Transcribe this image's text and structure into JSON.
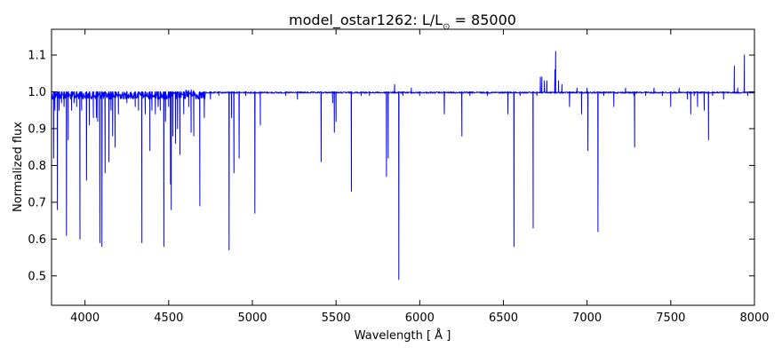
{
  "chart_data": {
    "type": "line",
    "title_main": "model_ostar1262: L/L",
    "title_sub": "⊙",
    "title_value": " = 85000",
    "xlabel": "Wavelength [ Å ]",
    "ylabel": "Normalized flux",
    "xlim": [
      3800,
      8000
    ],
    "ylim": [
      0.42,
      1.17
    ],
    "xticks": [
      4000,
      4500,
      5000,
      5500,
      6000,
      6500,
      7000,
      7500,
      8000
    ],
    "yticks": [
      0.5,
      0.6,
      0.7,
      0.8,
      0.9,
      1.0,
      1.1
    ],
    "ytick_labels": [
      "0.5",
      "0.6",
      "0.7",
      "0.8",
      "0.9",
      "1.0",
      "1.1"
    ],
    "grid": false,
    "series": [
      {
        "color": "#0000ff",
        "continuum": 1.0,
        "features": [
          [
            3813,
            0.82
          ],
          [
            3820,
            0.95
          ],
          [
            3835,
            0.68
          ],
          [
            3845,
            0.95
          ],
          [
            3860,
            0.97
          ],
          [
            3875,
            0.96
          ],
          [
            3889,
            0.61
          ],
          [
            3900,
            0.87
          ],
          [
            3920,
            0.95
          ],
          [
            3935,
            0.97
          ],
          [
            3950,
            0.96
          ],
          [
            3970,
            0.6
          ],
          [
            3980,
            0.95
          ],
          [
            4009,
            0.76
          ],
          [
            4026,
            0.91
          ],
          [
            4050,
            0.93
          ],
          [
            4068,
            0.93
          ],
          [
            4076,
            0.92
          ],
          [
            4089,
            0.59
          ],
          [
            4101,
            0.58
          ],
          [
            4120,
            0.78
          ],
          [
            4143,
            0.81
          ],
          [
            4155,
            0.95
          ],
          [
            4165,
            0.88
          ],
          [
            4180,
            0.85
          ],
          [
            4200,
            0.94
          ],
          [
            4250,
            0.97
          ],
          [
            4300,
            0.96
          ],
          [
            4320,
            0.95
          ],
          [
            4340,
            0.59
          ],
          [
            4360,
            0.94
          ],
          [
            4388,
            0.84
          ],
          [
            4400,
            0.95
          ],
          [
            4420,
            0.94
          ],
          [
            4437,
            0.96
          ],
          [
            4450,
            0.95
          ],
          [
            4471,
            0.58
          ],
          [
            4481,
            0.92
          ],
          [
            4500,
            0.96
          ],
          [
            4511,
            0.75
          ],
          [
            4515,
            0.68
          ],
          [
            4525,
            0.88
          ],
          [
            4541,
            0.86
          ],
          [
            4553,
            0.9
          ],
          [
            4567,
            0.83
          ],
          [
            4590,
            0.94
          ],
          [
            4620,
            0.96
          ],
          [
            4634,
            0.89
          ],
          [
            4650,
            0.88
          ],
          [
            4686,
            0.69
          ],
          [
            4713,
            0.93
          ],
          [
            4750,
            0.98
          ],
          [
            4800,
            0.99
          ],
          [
            4861,
            0.57
          ],
          [
            4876,
            0.93
          ],
          [
            4890,
            0.78
          ],
          [
            4921,
            0.82
          ],
          [
            4960,
            0.99
          ],
          [
            5015,
            0.67
          ],
          [
            5048,
            0.91
          ],
          [
            5200,
            0.99
          ],
          [
            5270,
            0.98
          ],
          [
            5411,
            0.81
          ],
          [
            5480,
            0.97
          ],
          [
            5490,
            0.89
          ],
          [
            5500,
            0.92
          ],
          [
            5592,
            0.73
          ],
          [
            5650,
            0.99
          ],
          [
            5700,
            0.99
          ],
          [
            5801,
            0.77
          ],
          [
            5812,
            0.82
          ],
          [
            5850,
            1.02
          ],
          [
            5875,
            0.49
          ],
          [
            5900,
            0.99
          ],
          [
            5950,
            1.01
          ],
          [
            6000,
            0.99
          ],
          [
            6147,
            0.94
          ],
          [
            6252,
            0.88
          ],
          [
            6300,
            0.99
          ],
          [
            6404,
            0.99
          ],
          [
            6527,
            0.94
          ],
          [
            6563,
            0.58
          ],
          [
            6600,
            0.99
          ],
          [
            6678,
            0.63
          ],
          [
            6700,
            0.99
          ],
          [
            6721,
            1.04
          ],
          [
            6730,
            1.04
          ],
          [
            6745,
            1.03
          ],
          [
            6760,
            1.03
          ],
          [
            6808,
            1.06
          ],
          [
            6812,
            1.11
          ],
          [
            6830,
            1.03
          ],
          [
            6850,
            1.02
          ],
          [
            6895,
            0.96
          ],
          [
            6940,
            1.01
          ],
          [
            6967,
            0.94
          ],
          [
            7000,
            1.01
          ],
          [
            7005,
            0.84
          ],
          [
            7065,
            0.62
          ],
          [
            7100,
            0.99
          ],
          [
            7160,
            0.96
          ],
          [
            7230,
            1.01
          ],
          [
            7280,
            0.99
          ],
          [
            7284,
            0.85
          ],
          [
            7350,
            0.99
          ],
          [
            7400,
            1.01
          ],
          [
            7450,
            0.99
          ],
          [
            7500,
            0.96
          ],
          [
            7550,
            1.01
          ],
          [
            7600,
            0.98
          ],
          [
            7620,
            0.94
          ],
          [
            7640,
            0.99
          ],
          [
            7660,
            0.96
          ],
          [
            7700,
            0.95
          ],
          [
            7726,
            0.87
          ],
          [
            7750,
            0.99
          ],
          [
            7816,
            0.98
          ],
          [
            7880,
            1.07
          ],
          [
            7900,
            1.01
          ],
          [
            7940,
            1.1
          ],
          [
            7960,
            0.99
          ]
        ]
      }
    ]
  }
}
